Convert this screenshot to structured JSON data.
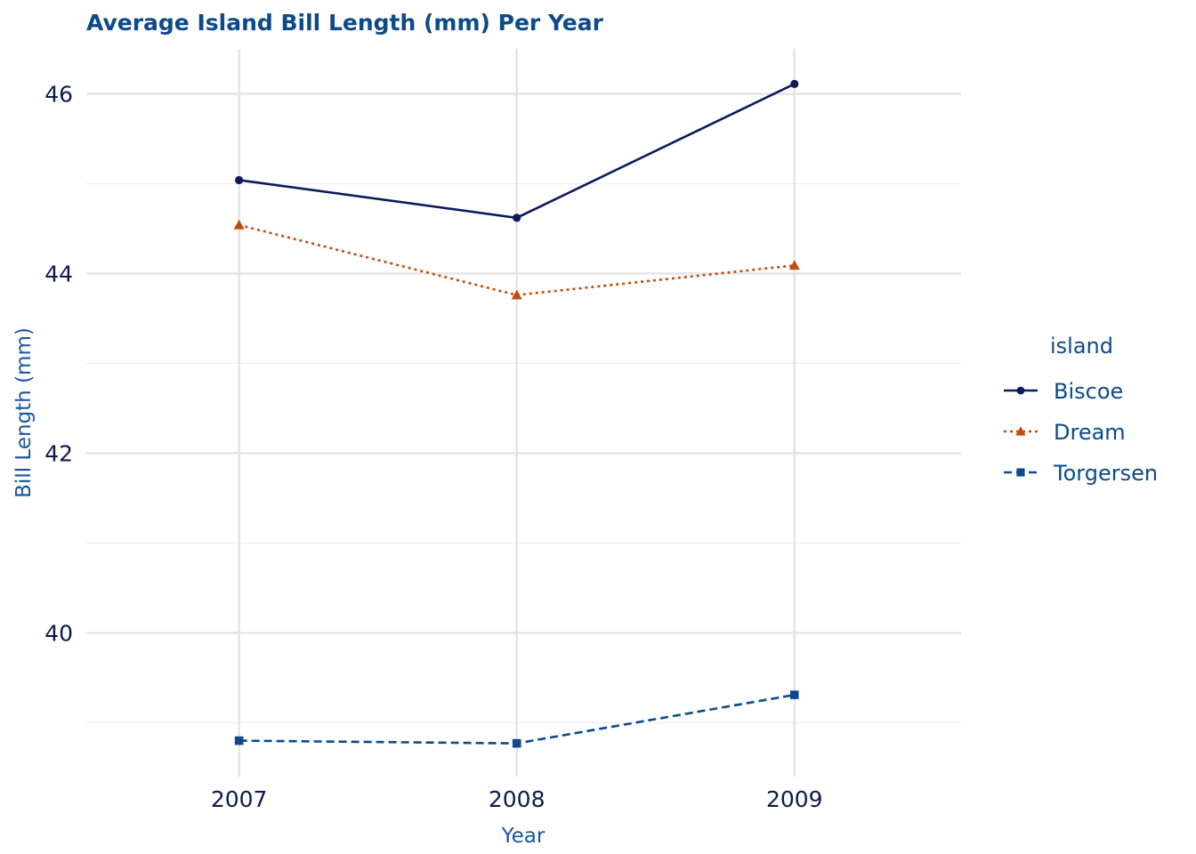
{
  "colors": {
    "title": "#0b4a8b",
    "axis_title": "#1a54a0",
    "tick_label": "#0d1a4f",
    "grid_major": "#e4e4e4",
    "grid_minor": "#efefef",
    "legend_text": "#0b4a8b"
  },
  "chart_data": {
    "type": "line",
    "title": "Average Island Bill Length (mm) Per Year",
    "xlabel": "Year",
    "ylabel": "Bill Length (mm)",
    "categories": [
      "2007",
      "2008",
      "2009"
    ],
    "x": [
      2007,
      2008,
      2009
    ],
    "xlim": [
      2006.45,
      2009.6
    ],
    "ylim": [
      38.4,
      46.5
    ],
    "yticks": [
      40,
      42,
      44,
      46
    ],
    "yticks_minor": [
      39,
      41,
      43,
      45
    ],
    "grid": true,
    "legend": {
      "title": "island",
      "placement": "right"
    },
    "series": [
      {
        "name": "Biscoe",
        "values": [
          45.04,
          44.62,
          46.11
        ],
        "color": "#0d1a5c",
        "linestyle": "solid",
        "marker": "circle"
      },
      {
        "name": "Dream",
        "values": [
          44.54,
          43.76,
          44.09
        ],
        "color": "#c24a0a",
        "linestyle": "dotted",
        "marker": "triangle"
      },
      {
        "name": "Torgersen",
        "values": [
          38.8,
          38.77,
          39.31
        ],
        "color": "#0b4a8b",
        "linestyle": "dashed",
        "marker": "square"
      }
    ]
  }
}
